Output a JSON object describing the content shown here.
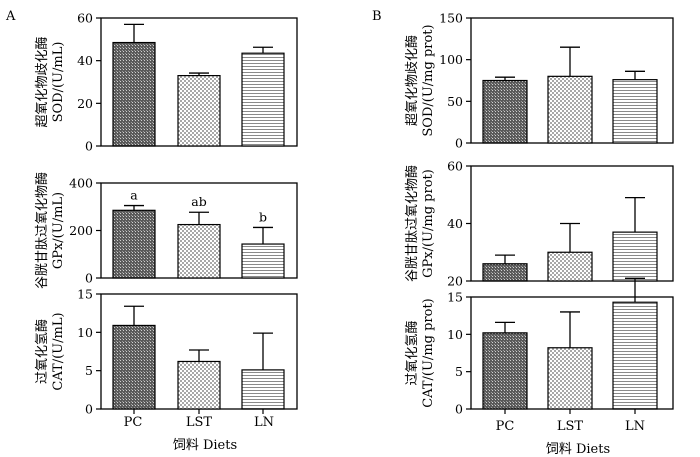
{
  "figure": {
    "xlabel": "饲料 Diets",
    "categories": [
      "PC",
      "LST",
      "LN"
    ],
    "patterns": [
      "dense-crosshatch",
      "light-checker",
      "horizontal-stripes"
    ]
  },
  "chart_data": [
    {
      "panel_label": "A",
      "type": "bar",
      "categories": [
        "PC",
        "LST",
        "LN"
      ],
      "subplots": [
        {
          "ylabel_cn": "超氧化物歧化酶",
          "ylabel_en": "SOD/(U/mL)",
          "ylim": [
            0,
            60
          ],
          "yticks": [
            0,
            20,
            40,
            60
          ],
          "values": [
            48.5,
            33,
            43.5
          ],
          "errors": [
            8.5,
            1.2,
            2.8
          ],
          "annotations": []
        },
        {
          "ylabel_cn": "谷胱甘肽过氧化物酶",
          "ylabel_en": "GPx/(U/mL)",
          "ylim": [
            0,
            400
          ],
          "yticks": [
            0,
            200,
            400
          ],
          "values": [
            285,
            225,
            143
          ],
          "errors": [
            20,
            52,
            70
          ],
          "annotations": [
            "a",
            "ab",
            "b"
          ]
        },
        {
          "ylabel_cn": "过氧化氢酶",
          "ylabel_en": "CAT/(U/mL)",
          "ylim": [
            0,
            15
          ],
          "yticks": [
            0,
            5,
            10,
            15
          ],
          "values": [
            10.9,
            6.2,
            5.1
          ],
          "errors": [
            2.5,
            1.5,
            4.8
          ],
          "annotations": []
        }
      ]
    },
    {
      "panel_label": "B",
      "type": "bar",
      "categories": [
        "PC",
        "LST",
        "LN"
      ],
      "subplots": [
        {
          "ylabel_cn": "超氧化物歧化酶",
          "ylabel_en": "SOD/(U/mg prot)",
          "ylim": [
            0,
            150
          ],
          "yticks": [
            0,
            50,
            100,
            150
          ],
          "values": [
            75,
            80,
            76
          ],
          "errors": [
            4,
            35,
            10
          ],
          "annotations": []
        },
        {
          "ylabel_cn": "谷胱甘肽过氧化物酶",
          "ylabel_en": "GPx/(U/mg prot)",
          "ylim": [
            20,
            60
          ],
          "yticks": [
            20,
            40,
            60
          ],
          "values": [
            26,
            30,
            37
          ],
          "errors": [
            3,
            10,
            12
          ],
          "annotations": []
        },
        {
          "ylabel_cn": "过氧化氢酶",
          "ylabel_en": "CAT/(U/mg prot)",
          "ylim": [
            0,
            15
          ],
          "yticks": [
            0,
            5,
            10,
            15
          ],
          "values": [
            10.2,
            8.2,
            14.3
          ],
          "errors": [
            1.4,
            4.8,
            3.2
          ],
          "annotations": []
        }
      ]
    }
  ]
}
